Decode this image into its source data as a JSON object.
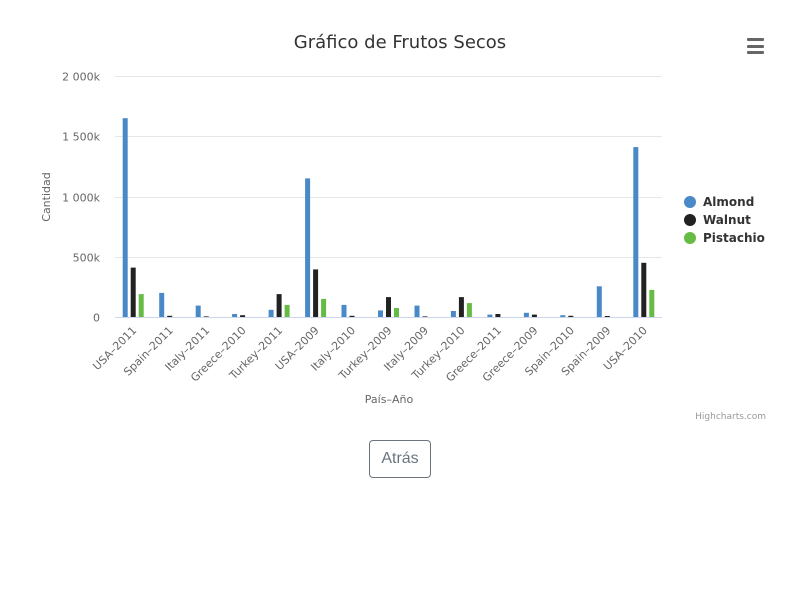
{
  "menu": {
    "icon": "hamburger-menu-icon"
  },
  "back_button": {
    "label": "Atrás"
  },
  "credits": "Highcharts.com",
  "chart_data": {
    "type": "bar",
    "title": "Gráfico de Frutos Secos",
    "xlabel": "País–Año",
    "ylabel": "Cantidad",
    "ylim": [
      0,
      2000000
    ],
    "yticks": [
      0,
      500000,
      1000000,
      1500000,
      2000000
    ],
    "ytick_labels": [
      "0",
      "500k",
      "1 000k",
      "1 500k",
      "2 000k"
    ],
    "grid": true,
    "legend_position": "right",
    "categories": [
      "USA–2011",
      "Spain–2011",
      "Italy–2011",
      "Greece–2010",
      "Turkey–2011",
      "USA–2009",
      "Italy–2010",
      "Turkey–2009",
      "Italy–2009",
      "Turkey–2010",
      "Greece–2011",
      "Greece–2009",
      "Spain–2010",
      "Spain–2009",
      "USA–2010"
    ],
    "series": [
      {
        "name": "Almond",
        "color": "#4a89c8",
        "values": [
          1650000,
          200000,
          95000,
          25000,
          60000,
          1150000,
          100000,
          55000,
          95000,
          50000,
          20000,
          35000,
          15000,
          255000,
          1410000
        ]
      },
      {
        "name": "Walnut",
        "color": "#222222",
        "values": [
          410000,
          10000,
          5000,
          15000,
          190000,
          395000,
          10000,
          165000,
          5000,
          165000,
          25000,
          20000,
          10000,
          8000,
          450000
        ]
      },
      {
        "name": "Pistachio",
        "color": "#66bb44",
        "values": [
          190000,
          0,
          0,
          0,
          100000,
          150000,
          0,
          75000,
          0,
          115000,
          0,
          0,
          0,
          0,
          225000
        ]
      }
    ]
  }
}
